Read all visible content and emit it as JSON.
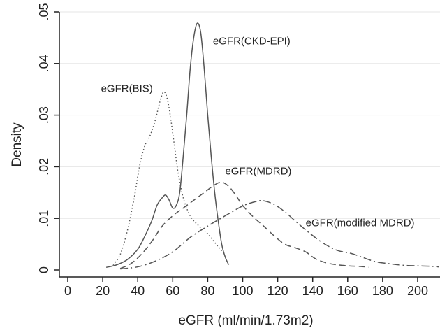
{
  "chart_data": {
    "type": "line",
    "title": "",
    "xlabel": "eGFR (ml/min/1.73m2)",
    "ylabel": "Density",
    "xlim": [
      0,
      210
    ],
    "ylim": [
      0,
      0.05
    ],
    "xticks": [
      0,
      20,
      40,
      60,
      80,
      100,
      120,
      140,
      160,
      180,
      200
    ],
    "xtick_labels": [
      "0",
      "20",
      "40",
      "60",
      "80",
      "100",
      "120",
      "140",
      "160",
      "180",
      "200"
    ],
    "yticks": [
      0,
      0.01,
      0.02,
      0.03,
      0.04,
      0.05
    ],
    "ytick_labels": [
      "0",
      ".01",
      ".02",
      ".03",
      ".04",
      ".05"
    ],
    "grid": "horizontal",
    "legend": "none",
    "colors": {
      "line": "#555555",
      "grid": "#e6e6e6",
      "axis": "#222222"
    },
    "series": [
      {
        "name": "eGFR(CKD-EPI)",
        "dash": "solid",
        "x": [
          22,
          28,
          34,
          40,
          44,
          48,
          51,
          54,
          56,
          58,
          60,
          62,
          64,
          66,
          68,
          70,
          72,
          74,
          76,
          78,
          80,
          82,
          84,
          86,
          88,
          90,
          92
        ],
        "y": [
          0.0005,
          0.001,
          0.002,
          0.004,
          0.0065,
          0.0095,
          0.0125,
          0.014,
          0.0145,
          0.0135,
          0.012,
          0.0125,
          0.015,
          0.022,
          0.03,
          0.039,
          0.045,
          0.0478,
          0.046,
          0.039,
          0.03,
          0.022,
          0.015,
          0.0095,
          0.005,
          0.0025,
          0.001
        ]
      },
      {
        "name": "eGFR(BIS)",
        "dash": "dotted",
        "x": [
          26,
          30,
          34,
          38,
          41,
          44,
          47,
          50,
          53,
          55,
          57,
          59,
          61,
          63,
          66,
          70,
          75,
          80,
          86,
          90
        ],
        "y": [
          0.001,
          0.003,
          0.0075,
          0.014,
          0.02,
          0.024,
          0.026,
          0.029,
          0.033,
          0.0345,
          0.033,
          0.029,
          0.024,
          0.019,
          0.014,
          0.0105,
          0.0085,
          0.007,
          0.0045,
          0.003
        ]
      },
      {
        "name": "eGFR(MDRD)",
        "dash": "dashed",
        "x": [
          30,
          36,
          42,
          48,
          54,
          60,
          66,
          72,
          78,
          84,
          88,
          92,
          96,
          100,
          106,
          112,
          118,
          124,
          130,
          136,
          142,
          150,
          160,
          166,
          170,
          172
        ],
        "y": [
          0.0003,
          0.0012,
          0.003,
          0.0055,
          0.0085,
          0.0105,
          0.012,
          0.0135,
          0.015,
          0.0165,
          0.017,
          0.0162,
          0.0145,
          0.0125,
          0.0103,
          0.0085,
          0.0066,
          0.005,
          0.0043,
          0.0035,
          0.0021,
          0.0012,
          0.0008,
          0.0007,
          0.0006,
          0.0005
        ]
      },
      {
        "name": "eGFR(modified MDRD)",
        "dash": "dash-dot",
        "x": [
          30,
          40,
          50,
          60,
          70,
          80,
          90,
          100,
          108,
          112,
          118,
          124,
          130,
          138,
          146,
          154,
          162,
          168,
          176,
          184,
          192,
          200,
          208,
          212
        ],
        "y": [
          0.0002,
          0.0006,
          0.0017,
          0.0035,
          0.0063,
          0.0085,
          0.0105,
          0.0124,
          0.0133,
          0.0134,
          0.0127,
          0.0113,
          0.0095,
          0.0072,
          0.0052,
          0.0038,
          0.0032,
          0.0025,
          0.0016,
          0.0012,
          0.0009,
          0.0008,
          0.0007,
          0.0006
        ]
      }
    ],
    "annotations": [
      {
        "text": "eGFR(CKD-EPI)",
        "x": 83,
        "y": 0.0437
      },
      {
        "text": "eGFR(BIS)",
        "x": 19,
        "y": 0.0345
      },
      {
        "text": "eGFR(MDRD)",
        "x": 90,
        "y": 0.0185
      },
      {
        "text": "eGFR(modified MDRD)",
        "x": 136,
        "y": 0.0085
      }
    ]
  }
}
